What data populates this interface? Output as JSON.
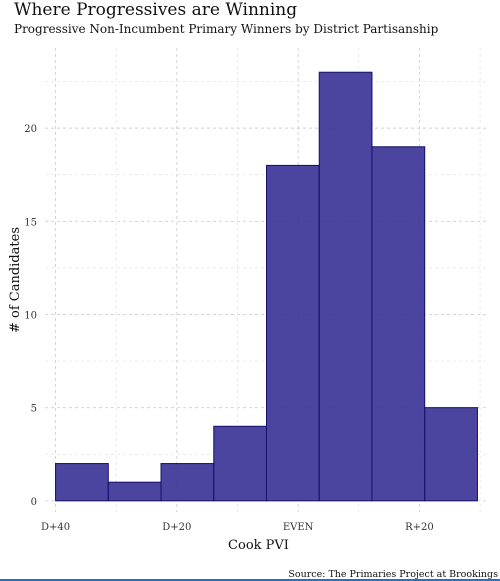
{
  "chart_data": {
    "type": "bar",
    "title": "Where Progressives are Winning",
    "subtitle": "Progressive Non-Incumbent Primary Winners by District Partisanship",
    "xlabel": "Cook PVI",
    "ylabel": "# of Candidates",
    "source": "Source: The Primaries Project at Brookings",
    "bin_width": 10,
    "bins": [
      {
        "start": -40,
        "end": -30,
        "value": 2
      },
      {
        "start": -30,
        "end": -20,
        "value": 1
      },
      {
        "start": -20,
        "end": -10,
        "value": 2
      },
      {
        "start": -10,
        "end": 0,
        "value": 4
      },
      {
        "start": 0,
        "end": 10,
        "value": 18
      },
      {
        "start": 10,
        "end": 20,
        "value": 23
      },
      {
        "start": 20,
        "end": 30,
        "value": 19
      },
      {
        "start": 30,
        "end": 40,
        "value": 5
      }
    ],
    "x_ticks": [
      {
        "value": -40,
        "label": "D+40"
      },
      {
        "value": -17,
        "label": "D+20"
      },
      {
        "value": 6,
        "label": "EVEN"
      },
      {
        "value": 29,
        "label": "R+20"
      }
    ],
    "y_ticks": [
      0,
      5,
      10,
      15,
      20
    ],
    "xlim": [
      -42,
      42
    ],
    "ylim": [
      -0.6,
      24.3
    ],
    "grid": true,
    "bar_color": "#3c3597",
    "bar_edge_color": "#15106a"
  }
}
